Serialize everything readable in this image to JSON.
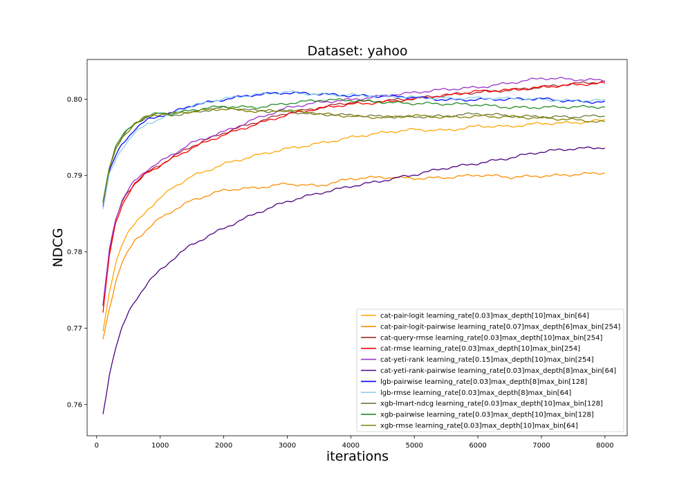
{
  "chart_data": {
    "type": "line",
    "title": "Dataset: yahoo",
    "xlabel": "iterations",
    "ylabel": "NDCG",
    "xlim": [
      -150,
      8350
    ],
    "ylim": [
      0.7559,
      0.8052
    ],
    "xticks": [
      0,
      1000,
      2000,
      3000,
      4000,
      5000,
      6000,
      7000,
      8000
    ],
    "yticks": [
      0.76,
      0.77,
      0.78,
      0.79,
      0.8
    ],
    "ytick_labels": [
      "0.76",
      "0.77",
      "0.78",
      "0.79",
      "0.80"
    ],
    "legend_position": "lower-right",
    "grid": false,
    "x": [
      100,
      200,
      300,
      400,
      500,
      600,
      800,
      1000,
      1200,
      1500,
      2000,
      2500,
      3000,
      3500,
      4000,
      4500,
      5000,
      5500,
      6000,
      6500,
      7000,
      7500,
      8000
    ],
    "series": [
      {
        "name": "cat-pair-logit learning_rate[0.03]max_depth[10]max_bin[64]",
        "color": "#ffa500",
        "values": [
          0.7695,
          0.7745,
          0.7785,
          0.781,
          0.7825,
          0.7835,
          0.7855,
          0.787,
          0.7885,
          0.79,
          0.7915,
          0.7925,
          0.7935,
          0.7943,
          0.795,
          0.7955,
          0.796,
          0.796,
          0.7965,
          0.7963,
          0.7968,
          0.797,
          0.7973
        ]
      },
      {
        "name": "cat-pair-logit-pairwise learning_rate[0.07]max_depth[6]max_bin[254]",
        "color": "#ff8c00",
        "values": [
          0.7685,
          0.7725,
          0.776,
          0.7785,
          0.78,
          0.7815,
          0.783,
          0.7845,
          0.7855,
          0.7868,
          0.788,
          0.7883,
          0.789,
          0.7887,
          0.7895,
          0.7897,
          0.7897,
          0.7898,
          0.79,
          0.7897,
          0.79,
          0.7902,
          0.7903
        ]
      },
      {
        "name": "cat-query-rmse learning_rate[0.03]max_depth[10]max_bin[254]",
        "color": "#a52a2a",
        "values": [
          0.773,
          0.78,
          0.784,
          0.7865,
          0.788,
          0.789,
          0.7905,
          0.7915,
          0.7925,
          0.7938,
          0.7955,
          0.797,
          0.7983,
          0.7988,
          0.7995,
          0.7998,
          0.8002,
          0.8005,
          0.8008,
          0.8012,
          0.8017,
          0.802,
          0.8022
        ]
      },
      {
        "name": "cat-rmse learning_rate[0.03]max_depth[10]max_bin[254]",
        "color": "#ff0000",
        "values": [
          0.772,
          0.7795,
          0.7838,
          0.7862,
          0.7878,
          0.789,
          0.7905,
          0.7913,
          0.7922,
          0.7935,
          0.7953,
          0.7968,
          0.798,
          0.7987,
          0.7993,
          0.7997,
          0.8001,
          0.8004,
          0.801,
          0.8013,
          0.8016,
          0.8018,
          0.802
        ]
      },
      {
        "name": "cat-yeti-rank learning_rate[0.15]max_depth[10]max_bin[254]",
        "color": "#9932cc",
        "values": [
          0.773,
          0.7805,
          0.7845,
          0.7868,
          0.7882,
          0.7893,
          0.7908,
          0.7917,
          0.7927,
          0.7942,
          0.7958,
          0.7975,
          0.7988,
          0.7995,
          0.8,
          0.8005,
          0.8008,
          0.8012,
          0.8016,
          0.8022,
          0.8027,
          0.8025,
          0.8025
        ]
      },
      {
        "name": "cat-yeti-rank-pairwise learning_rate[0.03]max_depth[8]max_bin[64]",
        "color": "#4b0082",
        "values": [
          0.7588,
          0.764,
          0.7675,
          0.77,
          0.772,
          0.7735,
          0.7758,
          0.7775,
          0.779,
          0.781,
          0.7832,
          0.785,
          0.7865,
          0.7877,
          0.7887,
          0.7893,
          0.79,
          0.791,
          0.7917,
          0.7923,
          0.793,
          0.7935,
          0.7938
        ]
      },
      {
        "name": "lgb-pairwise learning_rate[0.03]max_depth[8]max_bin[128]",
        "color": "#0000ff",
        "values": [
          0.786,
          0.7905,
          0.7925,
          0.794,
          0.795,
          0.796,
          0.7972,
          0.7978,
          0.7983,
          0.7993,
          0.8,
          0.8005,
          0.8008,
          0.8008,
          0.8005,
          0.8003,
          0.8002,
          0.8,
          0.8,
          0.7999,
          0.8,
          0.7998,
          0.7997
        ]
      },
      {
        "name": "lgb-rmse learning_rate[0.03]max_depth[8]max_bin[64]",
        "color": "#87ceeb",
        "values": [
          0.7855,
          0.79,
          0.792,
          0.7935,
          0.7945,
          0.7955,
          0.7968,
          0.7975,
          0.7982,
          0.7992,
          0.8,
          0.8005,
          0.801,
          0.8007,
          0.8005,
          0.8003,
          0.8003,
          0.8002,
          0.8001,
          0.8,
          0.8,
          0.7999,
          0.7998
        ]
      },
      {
        "name": "xgb-lmart-ndcg learning_rate[0.03]max_depth[10]max_bin[128]",
        "color": "#6b7b3a",
        "values": [
          0.7865,
          0.791,
          0.7935,
          0.795,
          0.796,
          0.7968,
          0.7978,
          0.7982,
          0.798,
          0.7982,
          0.7988,
          0.7985,
          0.7985,
          0.798,
          0.7978,
          0.7977,
          0.7978,
          0.7978,
          0.798,
          0.7978,
          0.7978,
          0.7977,
          0.7977
        ]
      },
      {
        "name": "xgb-pairwise learning_rate[0.03]max_depth[10]max_bin[128]",
        "color": "#228b22",
        "values": [
          0.7865,
          0.7912,
          0.7938,
          0.7952,
          0.7962,
          0.797,
          0.7978,
          0.7983,
          0.798,
          0.7985,
          0.799,
          0.799,
          0.7995,
          0.7998,
          0.7998,
          0.7997,
          0.7995,
          0.7993,
          0.7992,
          0.799,
          0.799,
          0.7989,
          0.7989
        ]
      },
      {
        "name": "xgb-rmse learning_rate[0.03]max_depth[10]max_bin[64]",
        "color": "#808000",
        "values": [
          0.7865,
          0.791,
          0.7935,
          0.795,
          0.796,
          0.7968,
          0.7978,
          0.798,
          0.798,
          0.7983,
          0.7988,
          0.7985,
          0.7985,
          0.798,
          0.7978,
          0.7977,
          0.7978,
          0.7975,
          0.7978,
          0.7978,
          0.7975,
          0.7972,
          0.797
        ]
      }
    ]
  }
}
